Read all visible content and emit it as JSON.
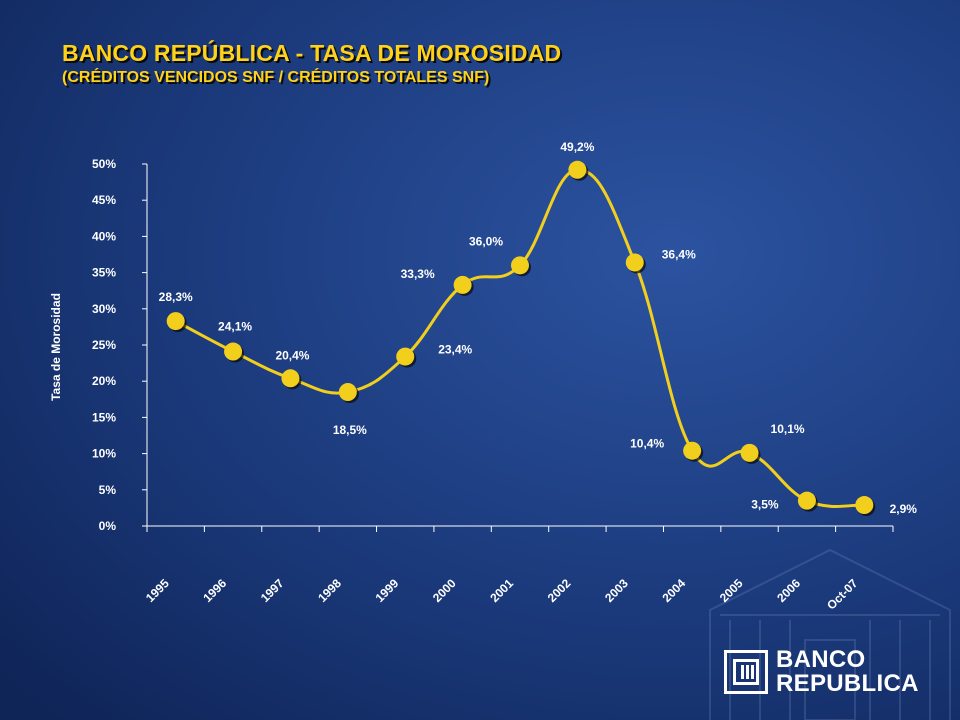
{
  "title": "BANCO REPÚBLICA - TASA DE MOROSIDAD",
  "subtitle": "(CRÉDITOS VENCIDOS SNF / CRÉDITOS TOTALES SNF)",
  "logo": {
    "line1": "BANCO",
    "line2": "REPUBLICA"
  },
  "colors": {
    "accent": "#ffd21a",
    "marker": "#f2cf1d",
    "background": "#1b3a7c"
  },
  "chart_data": {
    "type": "line",
    "title": "BANCO REPÚBLICA - TASA DE MOROSIDAD",
    "subtitle": "(CRÉDITOS VENCIDOS SNF / CRÉDITOS TOTALES SNF)",
    "ylabel": "Tasa de Morosidad",
    "xlabel": "",
    "ylim": [
      0,
      50
    ],
    "yticks": [
      0,
      5,
      10,
      15,
      20,
      25,
      30,
      35,
      40,
      45,
      50
    ],
    "ytick_labels": [
      "0%",
      "5%",
      "10%",
      "15%",
      "20%",
      "25%",
      "30%",
      "35%",
      "40%",
      "45%",
      "50%"
    ],
    "categories": [
      "1995",
      "1996",
      "1997",
      "1998",
      "1999",
      "2000",
      "2001",
      "2002",
      "2003",
      "2004",
      "2005",
      "2006",
      "Oct-07"
    ],
    "values": [
      28.3,
      24.1,
      20.4,
      18.5,
      23.4,
      33.3,
      36.0,
      49.2,
      36.4,
      10.4,
      10.1,
      3.5,
      2.9
    ],
    "data_labels": [
      "28,3%",
      "24,1%",
      "20,4%",
      "18,5%",
      "23,4%",
      "33,3%",
      "36,0%",
      "49,2%",
      "36,4%",
      "10,4%",
      "10,1%",
      "3,5%",
      "2,9%"
    ],
    "grid": false,
    "legend": "none",
    "line_style": "smooth"
  }
}
